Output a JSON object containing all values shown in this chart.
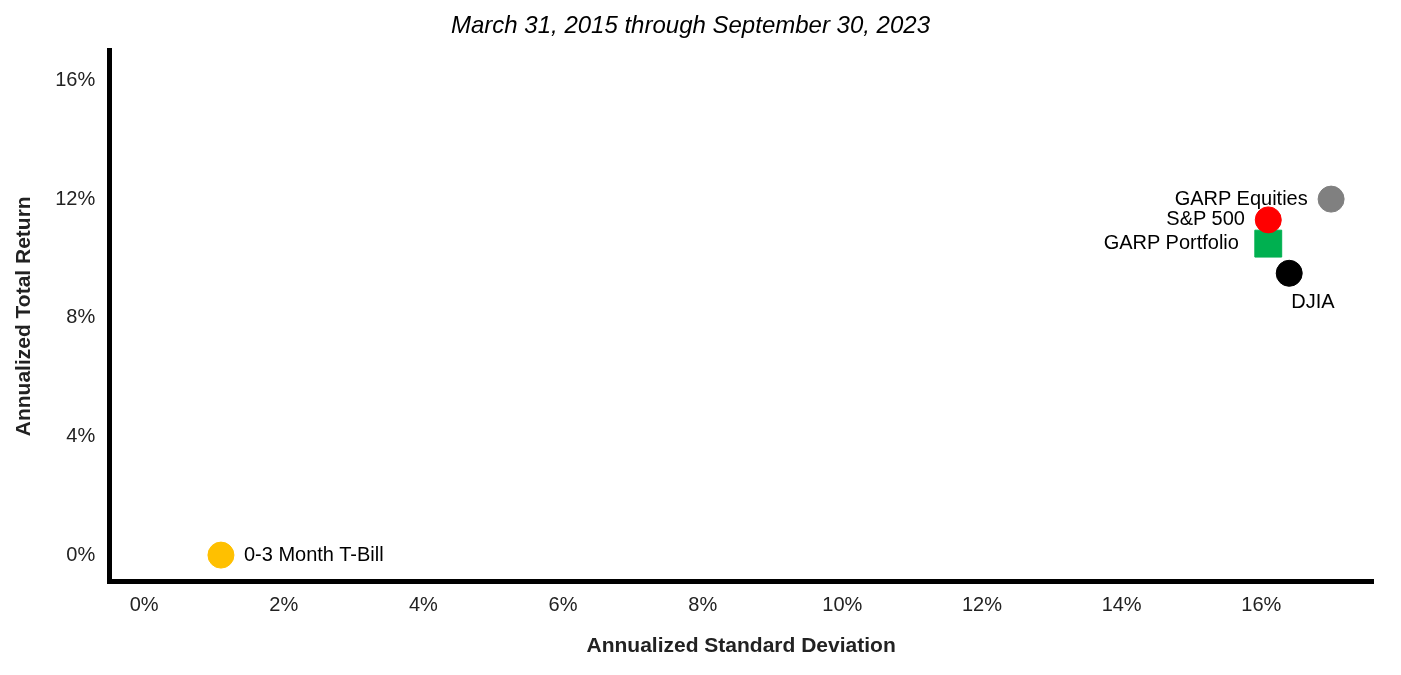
{
  "chart_data": {
    "type": "scatter",
    "title": "March 31, 2015 through September 30, 2023",
    "xlabel": "Annualized Standard Deviation",
    "ylabel": "Annualized Total Return",
    "xlim": [
      -0.5,
      17.6
    ],
    "ylim": [
      -0.9,
      17
    ],
    "xticks": [
      {
        "value": 0,
        "label": "0%"
      },
      {
        "value": 2,
        "label": "2%"
      },
      {
        "value": 4,
        "label": "4%"
      },
      {
        "value": 6,
        "label": "6%"
      },
      {
        "value": 8,
        "label": "8%"
      },
      {
        "value": 10,
        "label": "10%"
      },
      {
        "value": 12,
        "label": "12%"
      },
      {
        "value": 14,
        "label": "14%"
      },
      {
        "value": 16,
        "label": "16%"
      }
    ],
    "yticks": [
      {
        "value": 0,
        "label": "0%"
      },
      {
        "value": 4,
        "label": "4%"
      },
      {
        "value": 8,
        "label": "8%"
      },
      {
        "value": 12,
        "label": "12%"
      },
      {
        "value": 16,
        "label": "16%"
      }
    ],
    "grid": false,
    "legend": false,
    "marker": "circle",
    "series": [
      {
        "name": "0-3 Month T-Bill",
        "color": "#ffc000",
        "x": [
          1.1
        ],
        "values": [
          0
        ]
      },
      {
        "name": "S&P 500",
        "color": "#ff0000",
        "x": [
          16.1
        ],
        "values": [
          11.3
        ]
      },
      {
        "name": "GARP Portfolio",
        "color": "#00b050",
        "marker": "square",
        "x": [
          16.1
        ],
        "values": [
          10.5
        ]
      },
      {
        "name": "DJIA",
        "color": "#000000",
        "x": [
          16.4
        ],
        "values": [
          9.5
        ]
      },
      {
        "name": "GARP Equities",
        "color": "#808080",
        "x": [
          17.0
        ],
        "values": [
          12.0
        ]
      }
    ]
  }
}
